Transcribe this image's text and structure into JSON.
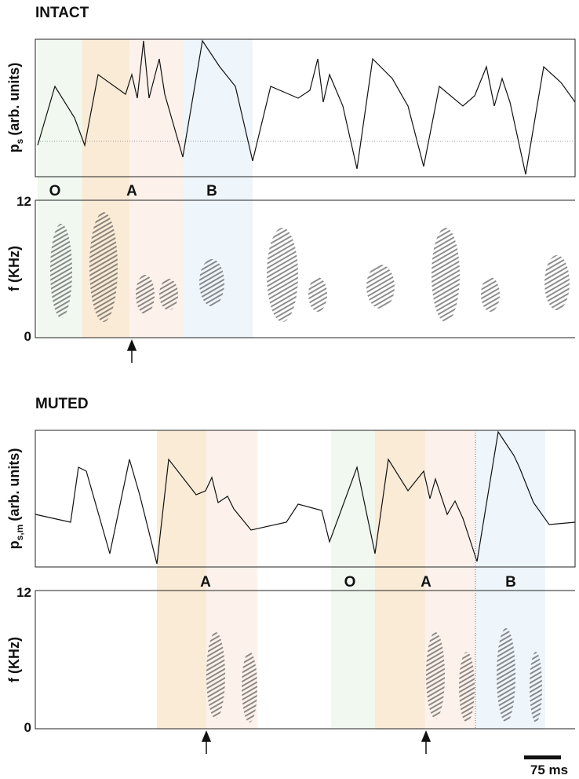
{
  "panels": [
    {
      "title": "INTACT",
      "pressure_label": {
        "symbol": "p",
        "subscript": "s",
        "unit": "(arb. units)"
      },
      "freq_label": "f (KHz)",
      "freq_ticks": [
        "12",
        "0"
      ],
      "syllables": [
        "O",
        "A",
        "B"
      ]
    },
    {
      "title": "MUTED",
      "pressure_label": {
        "symbol": "p",
        "subscript": "s,m",
        "unit": "(arb. units)"
      },
      "freq_label": "f (KHz)",
      "freq_ticks": [
        "12",
        "0"
      ],
      "syllables": [
        "A",
        "O",
        "A",
        "B"
      ]
    }
  ],
  "scale_bar": "75 ms"
}
